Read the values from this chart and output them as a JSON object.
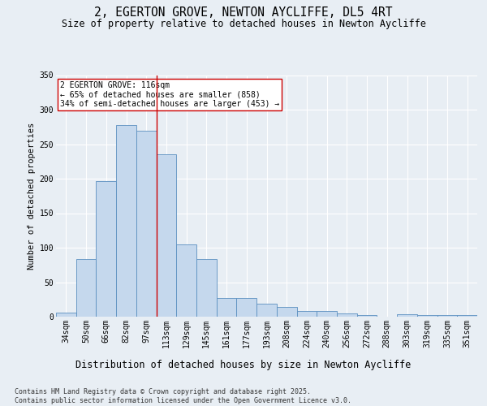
{
  "title1": "2, EGERTON GROVE, NEWTON AYCLIFFE, DL5 4RT",
  "title2": "Size of property relative to detached houses in Newton Aycliffe",
  "xlabel": "Distribution of detached houses by size in Newton Aycliffe",
  "ylabel": "Number of detached properties",
  "categories": [
    "34sqm",
    "50sqm",
    "66sqm",
    "82sqm",
    "97sqm",
    "113sqm",
    "129sqm",
    "145sqm",
    "161sqm",
    "177sqm",
    "193sqm",
    "208sqm",
    "224sqm",
    "240sqm",
    "256sqm",
    "272sqm",
    "288sqm",
    "303sqm",
    "319sqm",
    "335sqm",
    "351sqm"
  ],
  "values": [
    6,
    83,
    196,
    278,
    270,
    235,
    105,
    83,
    27,
    27,
    19,
    14,
    8,
    8,
    5,
    2,
    0,
    3,
    2,
    2,
    2
  ],
  "bar_color": "#c5d8ed",
  "bar_edge_color": "#5a8fc0",
  "vline_x_index": 5,
  "vline_color": "#cc0000",
  "annotation_text": "2 EGERTON GROVE: 116sqm\n← 65% of detached houses are smaller (858)\n34% of semi-detached houses are larger (453) →",
  "annotation_box_color": "#ffffff",
  "annotation_box_edge": "#cc0000",
  "ylim": [
    0,
    350
  ],
  "yticks": [
    0,
    50,
    100,
    150,
    200,
    250,
    300,
    350
  ],
  "bg_color": "#e8eef4",
  "plot_bg_color": "#e8eef4",
  "footer": "Contains HM Land Registry data © Crown copyright and database right 2025.\nContains public sector information licensed under the Open Government Licence v3.0.",
  "title1_fontsize": 10.5,
  "title2_fontsize": 8.5,
  "xlabel_fontsize": 8.5,
  "ylabel_fontsize": 7.5,
  "tick_fontsize": 7,
  "annotation_fontsize": 7,
  "footer_fontsize": 6
}
